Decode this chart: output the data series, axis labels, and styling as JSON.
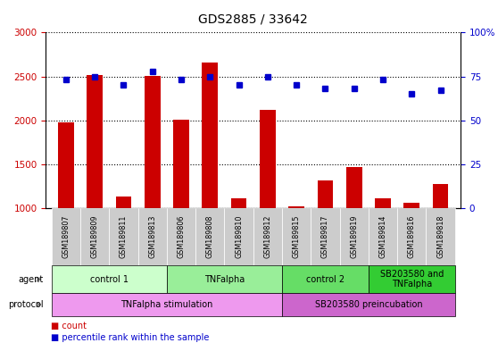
{
  "title": "GDS2885 / 33642",
  "samples": [
    "GSM189807",
    "GSM189809",
    "GSM189811",
    "GSM189813",
    "GSM189806",
    "GSM189808",
    "GSM189810",
    "GSM189812",
    "GSM189815",
    "GSM189817",
    "GSM189819",
    "GSM189814",
    "GSM189816",
    "GSM189818"
  ],
  "counts": [
    1975,
    2520,
    1130,
    2510,
    2010,
    2660,
    1105,
    2120,
    1015,
    1310,
    1470,
    1110,
    1060,
    1270
  ],
  "percentiles": [
    73,
    75,
    70,
    78,
    73,
    75,
    70,
    75,
    70,
    68,
    68,
    73,
    65,
    67
  ],
  "bar_color": "#cc0000",
  "dot_color": "#0000cc",
  "ylim_left": [
    1000,
    3000
  ],
  "ylim_right": [
    0,
    100
  ],
  "yticks_left": [
    1000,
    1500,
    2000,
    2500,
    3000
  ],
  "yticks_right": [
    0,
    25,
    50,
    75,
    100
  ],
  "agent_groups": [
    {
      "label": "control 1",
      "start": 0,
      "end": 3,
      "color": "#ccffcc"
    },
    {
      "label": "TNFalpha",
      "start": 4,
      "end": 7,
      "color": "#99ee99"
    },
    {
      "label": "control 2",
      "start": 8,
      "end": 10,
      "color": "#66dd66"
    },
    {
      "label": "SB203580 and\nTNFalpha",
      "start": 11,
      "end": 13,
      "color": "#33cc33"
    }
  ],
  "protocol_groups": [
    {
      "label": "TNFalpha stimulation",
      "start": 0,
      "end": 7,
      "color": "#ee99ee"
    },
    {
      "label": "SB203580 preincubation",
      "start": 8,
      "end": 13,
      "color": "#cc66cc"
    }
  ],
  "bg_color": "#ffffff",
  "tick_area_color": "#cccccc",
  "grid_color": "#000000",
  "agent_label": "agent",
  "protocol_label": "protocol",
  "legend_count_label": "count",
  "legend_pct_label": "percentile rank within the sample"
}
